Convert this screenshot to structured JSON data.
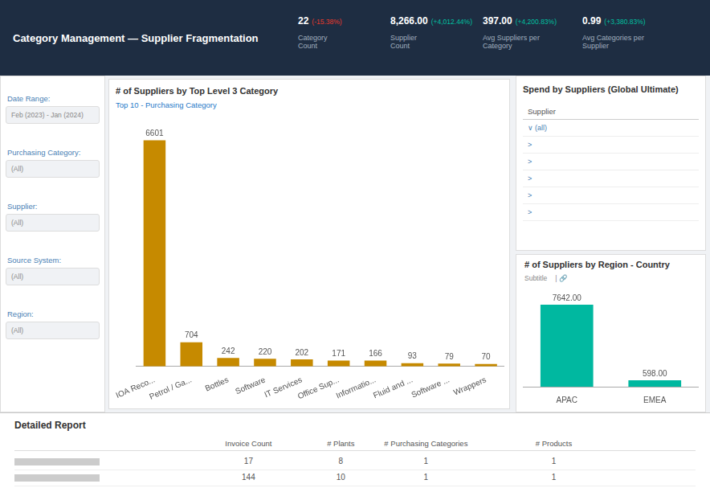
{
  "chart_data": [
    {
      "type": "bar",
      "title": "# of Suppliers by Top Level 3 Category",
      "subtitle": "Top 10 - Purchasing Category",
      "categories": [
        "IOA Reco...",
        "Petrol / Ga...",
        "Bottles",
        "Software",
        "IT Services",
        "Office Sup...",
        "Informatio...",
        "Fluid and ...",
        "Software ...",
        "Wrappers"
      ],
      "values": [
        6601,
        704,
        242,
        220,
        202,
        171,
        166,
        93,
        79,
        70
      ],
      "color": "#C68A00",
      "ylim": [
        0,
        7200
      ],
      "grid": false,
      "tick_labels": "x",
      "data_labels": true
    },
    {
      "type": "bar",
      "title": "# of Suppliers by Region - Country",
      "subtitle": "Subtitle",
      "annotations": [
        "|  🔗"
      ],
      "categories": [
        "APAC",
        "EMEA"
      ],
      "values": [
        7642.0,
        598.0
      ],
      "value_labels": [
        "7642.00",
        "598.00"
      ],
      "color": "#00B8A0",
      "ylim": [
        0,
        9000
      ],
      "grid": false,
      "tick_labels": "x",
      "data_labels": true
    }
  ],
  "dashboard": {
    "title": "Category Management — Supplier Fragmentation",
    "metrics": [
      {
        "value": "22",
        "change": "(-15.38%)",
        "color": "#E8392A",
        "label": "Category\nCount"
      },
      {
        "value": "8,266.00",
        "change": "(+4,012.44%)",
        "color": "#00C0A0",
        "label": "Supplier\nCount"
      },
      {
        "value": "397.00",
        "change": "(+4,200.83%)",
        "color": "#00C0A0",
        "label": "Avg Suppliers per\nCategory"
      },
      {
        "value": "0.99",
        "change": "(+3,380.83%)",
        "color": "#00C0A0",
        "label": "Avg Categories per\nSupplier"
      }
    ],
    "filters": [
      {
        "label": "Date Range:",
        "value": "Feb (2023) - Jan (2024)"
      },
      {
        "label": "Purchasing Category:",
        "value": "(All)"
      },
      {
        "label": "Supplier:",
        "value": "(All)"
      },
      {
        "label": "Source System:",
        "value": "(All)"
      },
      {
        "label": "Region:",
        "value": "(All)"
      }
    ],
    "spend": {
      "title": "Spend by Suppliers (Global Ultimate)",
      "column": "Supplier",
      "rows": [
        "∨  (all)",
        ">",
        ">",
        ">",
        ">",
        ">"
      ]
    },
    "table": {
      "title": "Detailed Report",
      "columns": [
        "Invoice Count",
        "# Plants",
        "# Purchasing Categories",
        "# Products"
      ],
      "rows": [
        [
          "17",
          "8",
          "1",
          "1"
        ],
        [
          "144",
          "10",
          "1",
          "1"
        ]
      ]
    }
  }
}
